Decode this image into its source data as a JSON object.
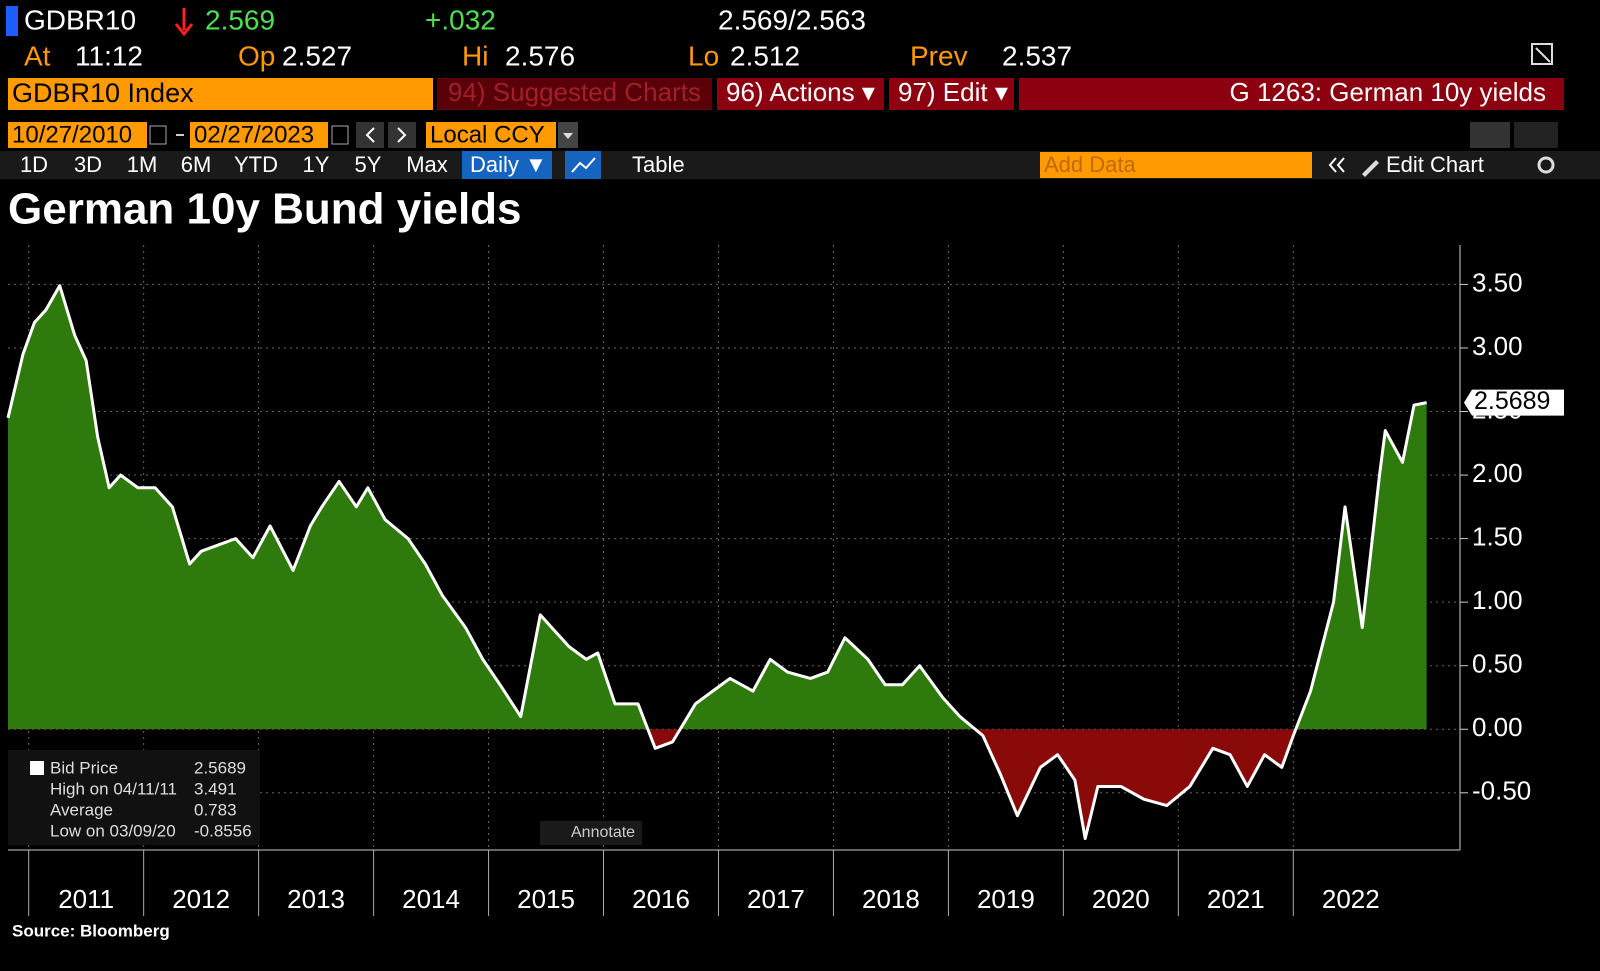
{
  "header": {
    "ticker": "GDBR10",
    "last": "2.569",
    "change": "+.032",
    "bid_ask": "2.569/2.563",
    "at_label": "At",
    "time": "11:12",
    "open_label": "Op",
    "open": "2.527",
    "high_label": "Hi",
    "high": "2.576",
    "low_label": "Lo",
    "low": "2.512",
    "prev_label": "Prev",
    "prev": "2.537"
  },
  "menu": {
    "security": "GDBR10 Index",
    "suggested": "94) Suggested Charts",
    "actions": "96) Actions ▾",
    "edit": "97) Edit ▾",
    "page": "G 1263: German 10y yields"
  },
  "toolbar": {
    "start": "10/27/2010",
    "end": "02/27/2023",
    "currency": "Local CCY",
    "periods": [
      "1D",
      "3D",
      "1M",
      "6M",
      "YTD",
      "1Y",
      "5Y",
      "Max"
    ],
    "frequency": "Daily ▼",
    "table": "Table",
    "add_data": "Add Data",
    "edit_chart": "Edit Chart"
  },
  "legend": {
    "rows": [
      [
        "Bid Price",
        "2.5689"
      ],
      [
        "High on 04/11/11",
        "3.491"
      ],
      [
        "Average",
        "0.783"
      ],
      [
        "Low on 03/09/20",
        "-0.8556"
      ]
    ]
  },
  "annotate": "Annotate",
  "chart_data": {
    "type": "line",
    "title": "German 10y Bund yields",
    "source": "Source: Bloomberg",
    "last_value_label": "2.5689",
    "x": [
      2010.82,
      2010.95,
      2011.05,
      2011.15,
      2011.27,
      2011.4,
      2011.5,
      2011.6,
      2011.7,
      2011.8,
      2011.95,
      2012.1,
      2012.25,
      2012.4,
      2012.5,
      2012.65,
      2012.8,
      2012.95,
      2013.1,
      2013.3,
      2013.45,
      2013.55,
      2013.7,
      2013.85,
      2013.95,
      2014.1,
      2014.3,
      2014.45,
      2014.6,
      2014.8,
      2014.95,
      2015.1,
      2015.28,
      2015.45,
      2015.55,
      2015.7,
      2015.85,
      2015.95,
      2016.1,
      2016.3,
      2016.45,
      2016.6,
      2016.8,
      2016.95,
      2017.1,
      2017.3,
      2017.45,
      2017.6,
      2017.8,
      2017.95,
      2018.1,
      2018.3,
      2018.45,
      2018.6,
      2018.75,
      2018.95,
      2019.1,
      2019.3,
      2019.45,
      2019.6,
      2019.8,
      2019.95,
      2020.1,
      2020.19,
      2020.3,
      2020.5,
      2020.7,
      2020.9,
      2021.1,
      2021.3,
      2021.45,
      2021.6,
      2021.75,
      2021.9,
      2022.0,
      2022.15,
      2022.35,
      2022.45,
      2022.6,
      2022.75,
      2022.8,
      2022.95,
      2023.05,
      2023.16
    ],
    "values": [
      2.45,
      2.95,
      3.2,
      3.3,
      3.49,
      3.1,
      2.9,
      2.3,
      1.9,
      2.0,
      1.9,
      1.9,
      1.75,
      1.3,
      1.4,
      1.45,
      1.5,
      1.35,
      1.6,
      1.25,
      1.6,
      1.75,
      1.95,
      1.75,
      1.9,
      1.65,
      1.5,
      1.3,
      1.05,
      0.8,
      0.55,
      0.35,
      0.1,
      0.9,
      0.8,
      0.65,
      0.55,
      0.6,
      0.2,
      0.2,
      -0.15,
      -0.1,
      0.2,
      0.3,
      0.4,
      0.3,
      0.55,
      0.45,
      0.4,
      0.45,
      0.72,
      0.55,
      0.35,
      0.35,
      0.5,
      0.25,
      0.1,
      -0.05,
      -0.35,
      -0.68,
      -0.3,
      -0.2,
      -0.4,
      -0.86,
      -0.45,
      -0.45,
      -0.55,
      -0.6,
      -0.45,
      -0.15,
      -0.2,
      -0.45,
      -0.2,
      -0.3,
      -0.05,
      0.3,
      1.0,
      1.75,
      0.8,
      2.0,
      2.35,
      2.1,
      2.55,
      2.57
    ],
    "color": "#ffffff",
    "positive_fill": "#2f7a0c",
    "negative_fill": "#8a0a0a",
    "xlim": [
      2010.82,
      2023.45
    ],
    "xticks": [
      {
        "value": 2011,
        "label": "2011"
      },
      {
        "value": 2012,
        "label": "2012"
      },
      {
        "value": 2013,
        "label": "2013"
      },
      {
        "value": 2014,
        "label": "2014"
      },
      {
        "value": 2015,
        "label": "2015"
      },
      {
        "value": 2016,
        "label": "2016"
      },
      {
        "value": 2017,
        "label": "2017"
      },
      {
        "value": 2018,
        "label": "2018"
      },
      {
        "value": 2019,
        "label": "2019"
      },
      {
        "value": 2020,
        "label": "2020"
      },
      {
        "value": 2021,
        "label": "2021"
      },
      {
        "value": 2022,
        "label": "2022"
      }
    ],
    "ylim": [
      -0.95,
      3.81
    ],
    "yticks": [
      {
        "value": -0.5,
        "label": "-0.50"
      },
      {
        "value": 0,
        "label": "0.00"
      },
      {
        "value": 0.5,
        "label": "0.50"
      },
      {
        "value": 1,
        "label": "1.00"
      },
      {
        "value": 1.5,
        "label": "1.50"
      },
      {
        "value": 2,
        "label": "2.00"
      },
      {
        "value": 2.5,
        "label": "2.50"
      },
      {
        "value": 3,
        "label": "3.00"
      },
      {
        "value": 3.5,
        "label": "3.50"
      }
    ],
    "grid": true
  }
}
